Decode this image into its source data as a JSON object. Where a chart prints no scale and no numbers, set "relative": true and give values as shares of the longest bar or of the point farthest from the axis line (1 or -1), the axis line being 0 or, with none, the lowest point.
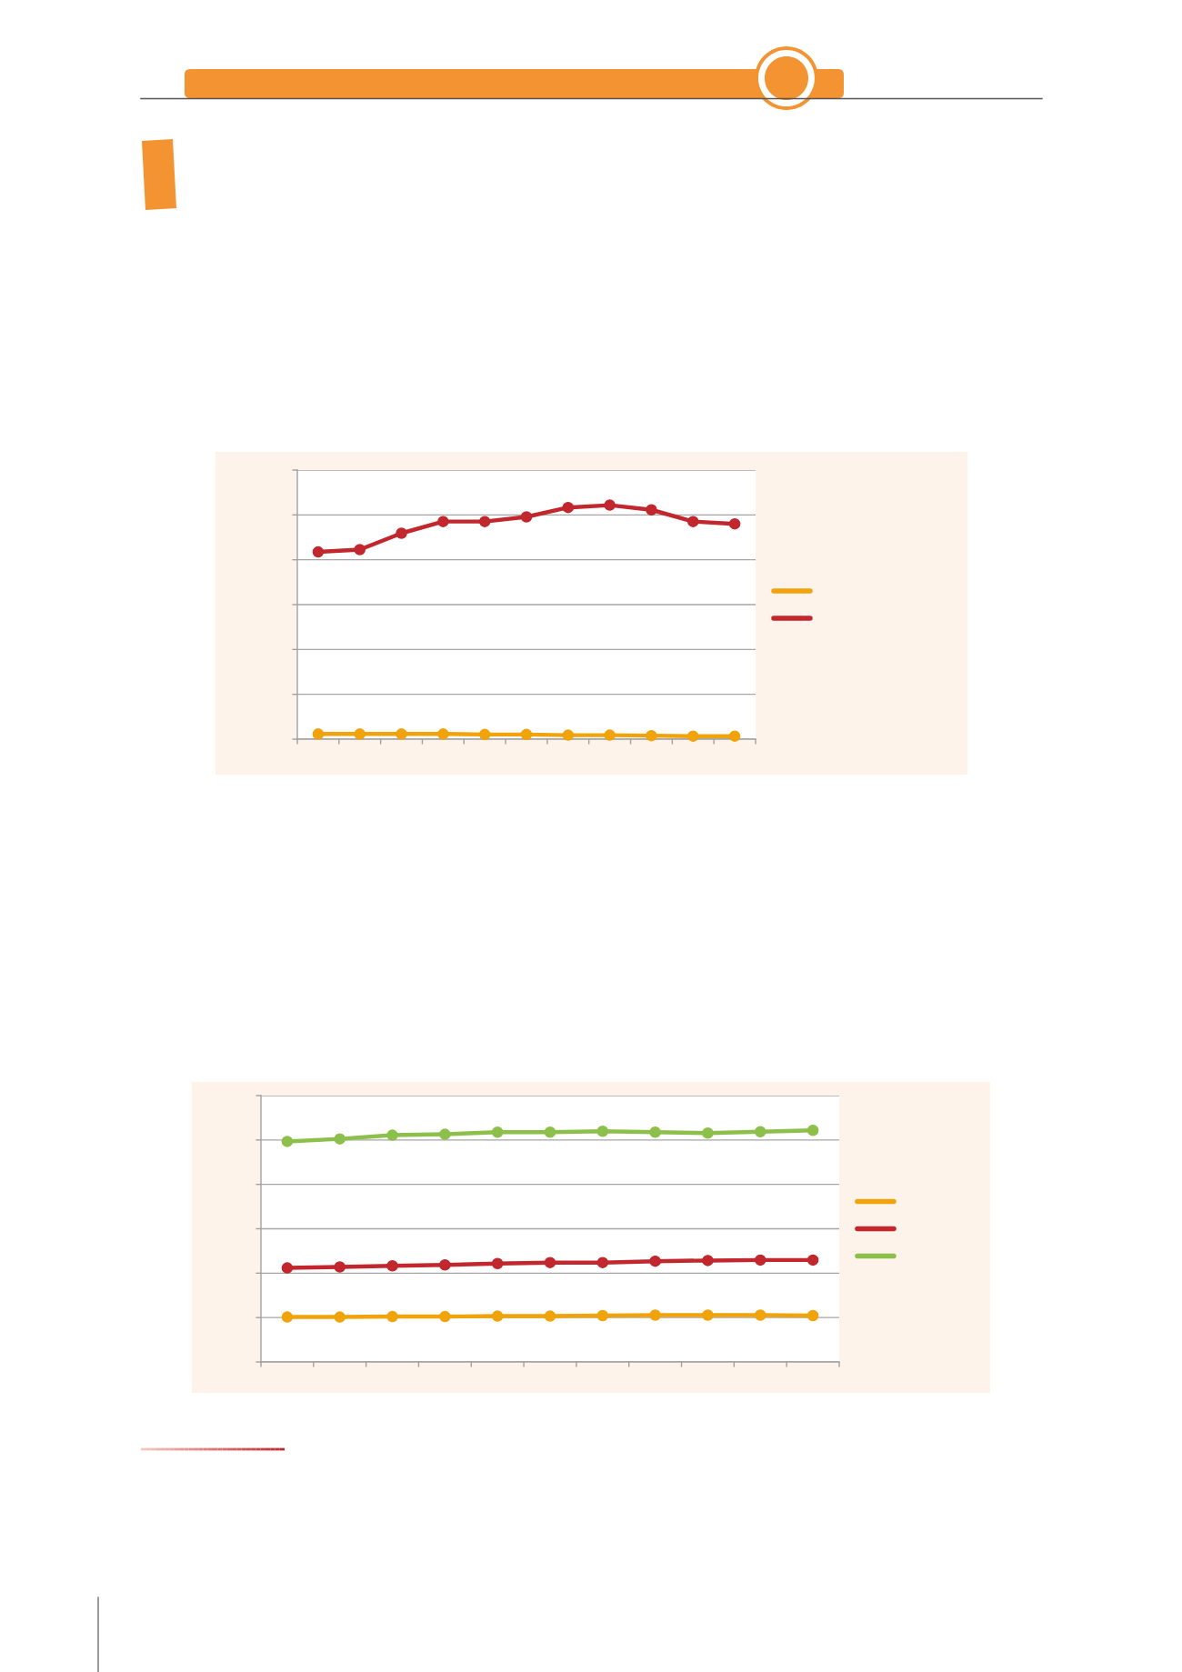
{
  "chart_data": [
    {
      "type": "line",
      "categories": [
        null,
        null,
        null,
        null,
        null,
        null,
        null,
        null,
        null,
        null,
        null
      ],
      "relative": true,
      "series": [
        {
          "color": "#f0a30a",
          "values": [
            0.022,
            0.022,
            0.022,
            0.022,
            0.02,
            0.02,
            0.017,
            0.017,
            0.015,
            0.013,
            0.013
          ]
        },
        {
          "color": "#c1272d",
          "values": [
            0.8,
            0.81,
            0.88,
            0.93,
            0.93,
            0.95,
            0.99,
            1.0,
            0.98,
            0.93,
            0.92
          ]
        }
      ],
      "marker": "circle",
      "line_style": "solid",
      "grid": "y"
    },
    {
      "type": "line",
      "categories": [
        null,
        null,
        null,
        null,
        null,
        null,
        null,
        null,
        null,
        null,
        null
      ],
      "relative": true,
      "series": [
        {
          "color": "#f0a30a",
          "values": [
            0.194,
            0.194,
            0.196,
            0.196,
            0.198,
            0.198,
            0.2,
            0.202,
            0.202,
            0.202,
            0.2
          ]
        },
        {
          "color": "#c1272d",
          "values": [
            0.406,
            0.41,
            0.415,
            0.419,
            0.425,
            0.429,
            0.429,
            0.435,
            0.438,
            0.44,
            0.44
          ]
        },
        {
          "color": "#8cc04b",
          "values": [
            0.952,
            0.963,
            0.979,
            0.983,
            0.992,
            0.992,
            0.996,
            0.992,
            0.988,
            0.994,
            1.0
          ]
        }
      ],
      "marker": "circle",
      "line_style": "solid",
      "grid": "y"
    }
  ]
}
